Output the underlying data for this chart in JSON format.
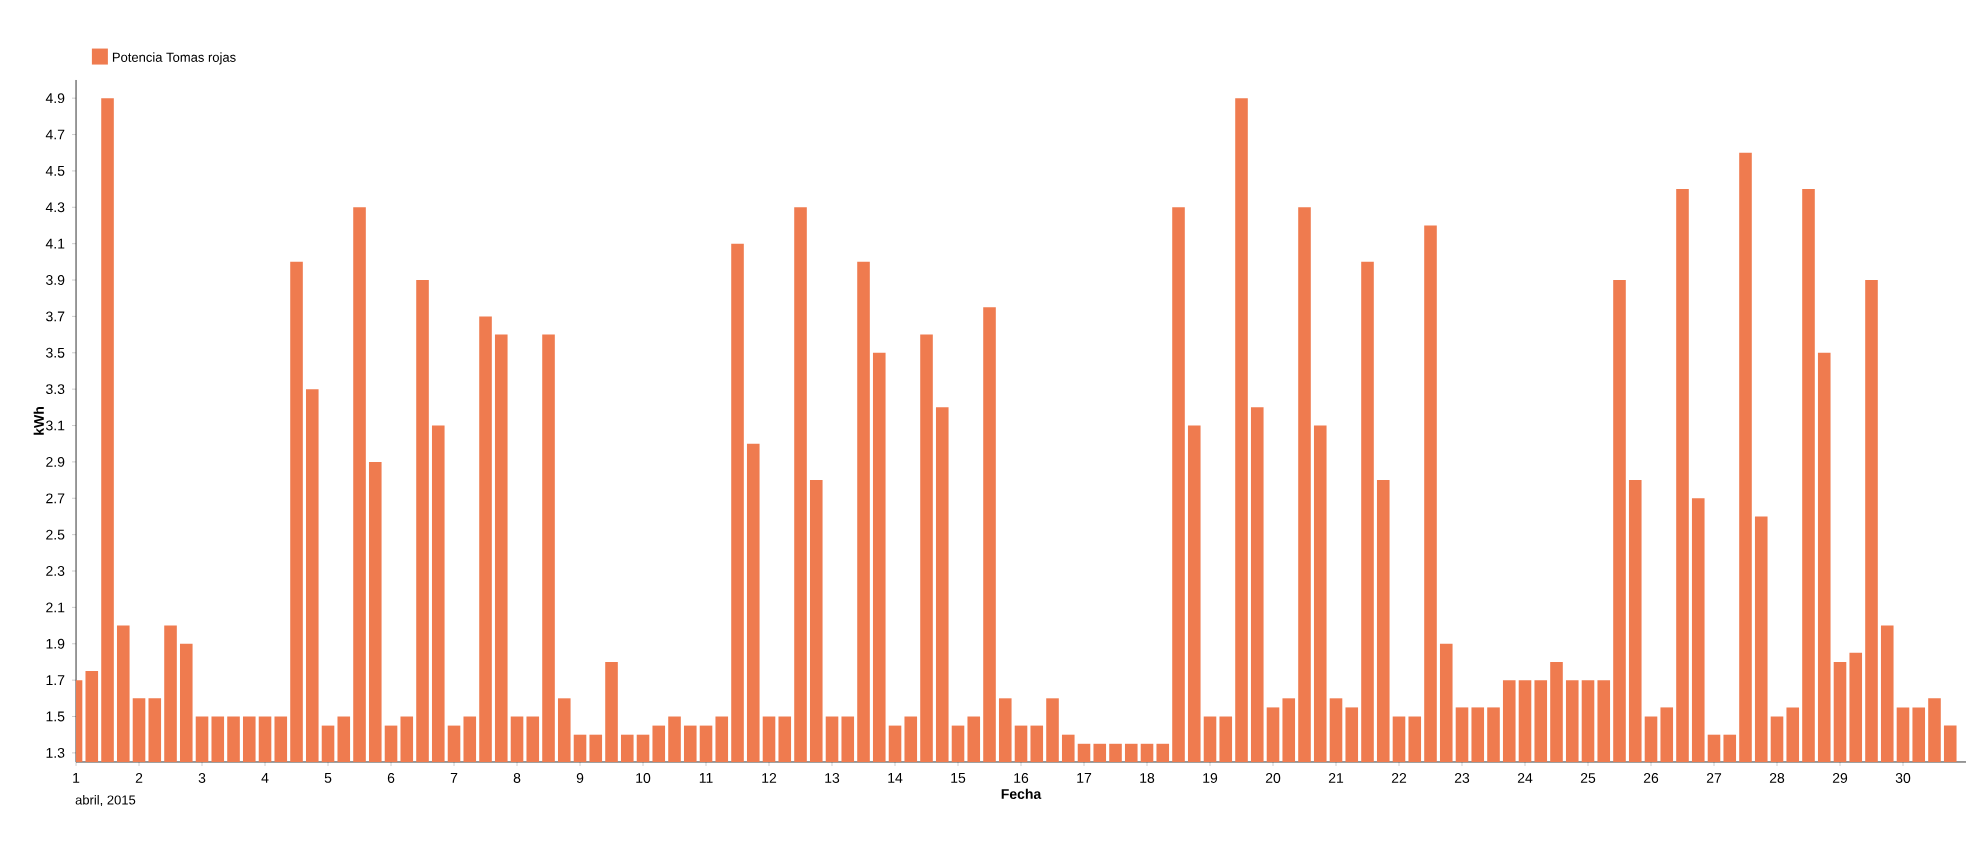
{
  "chart_data": {
    "type": "bar",
    "xlabel": "Fecha",
    "ylabel": "kWh",
    "annotations": [
      "abril, 2015"
    ],
    "legend": "top left",
    "xlim": [
      1,
      31
    ],
    "ylim": [
      1.25,
      5.0
    ],
    "xticks": [
      1,
      2,
      3,
      4,
      5,
      6,
      7,
      8,
      9,
      10,
      11,
      12,
      13,
      14,
      15,
      16,
      17,
      18,
      19,
      20,
      21,
      22,
      23,
      24,
      25,
      26,
      27,
      28,
      29,
      30
    ],
    "yticks": [
      1.3,
      1.5,
      1.7,
      1.9,
      2.1,
      2.3,
      2.5,
      2.7,
      2.9,
      3.1,
      3.3,
      3.5,
      3.7,
      3.9,
      4.1,
      4.3,
      4.5,
      4.7,
      4.9
    ],
    "series": [
      {
        "name": "Potencia Tomas rojas",
        "color": "#ef7b4f",
        "x": [
          1,
          1.25,
          1.5,
          1.75,
          2,
          2.25,
          2.5,
          2.75,
          3,
          3.25,
          3.5,
          3.75,
          4,
          4.25,
          4.5,
          4.75,
          5,
          5.25,
          5.5,
          5.75,
          6,
          6.25,
          6.5,
          6.75,
          7,
          7.25,
          7.5,
          7.75,
          8,
          8.25,
          8.5,
          8.75,
          9,
          9.25,
          9.5,
          9.75,
          10,
          10.25,
          10.5,
          10.75,
          11,
          11.25,
          11.5,
          11.75,
          12,
          12.25,
          12.5,
          12.75,
          13,
          13.25,
          13.5,
          13.75,
          14,
          14.25,
          14.5,
          14.75,
          15,
          15.25,
          15.5,
          15.75,
          16,
          16.25,
          16.5,
          16.75,
          17,
          17.25,
          17.5,
          17.75,
          18,
          18.25,
          18.5,
          18.75,
          19,
          19.25,
          19.5,
          19.75,
          20,
          20.25,
          20.5,
          20.75,
          21,
          21.25,
          21.5,
          21.75,
          22,
          22.25,
          22.5,
          22.75,
          23,
          23.25,
          23.5,
          23.75,
          24,
          24.25,
          24.5,
          24.75,
          25,
          25.25,
          25.5,
          25.75,
          26,
          26.25,
          26.5,
          26.75,
          27,
          27.25,
          27.5,
          27.75,
          28,
          28.25,
          28.5,
          28.75,
          29,
          29.25,
          29.5,
          29.75,
          30,
          30.25,
          30.5,
          30.75
        ],
        "values": [
          1.7,
          1.75,
          4.9,
          2.0,
          1.6,
          1.6,
          2.0,
          1.9,
          1.5,
          1.5,
          1.5,
          1.5,
          1.5,
          1.5,
          4.0,
          3.3,
          1.45,
          1.5,
          4.3,
          2.9,
          1.45,
          1.5,
          3.9,
          3.1,
          1.45,
          1.5,
          3.7,
          3.6,
          1.5,
          1.5,
          3.6,
          1.6,
          1.4,
          1.4,
          1.8,
          1.4,
          1.4,
          1.45,
          1.5,
          1.45,
          1.45,
          1.5,
          4.1,
          3.0,
          1.5,
          1.5,
          4.3,
          2.8,
          1.5,
          1.5,
          4.0,
          3.5,
          1.45,
          1.5,
          3.6,
          3.2,
          1.45,
          1.5,
          3.75,
          1.6,
          1.45,
          1.45,
          1.6,
          1.4,
          1.35,
          1.35,
          1.35,
          1.35,
          1.35,
          1.35,
          4.3,
          3.1,
          1.5,
          1.5,
          4.9,
          3.2,
          1.55,
          1.6,
          4.3,
          3.1,
          1.6,
          1.55,
          4.0,
          2.8,
          1.5,
          1.5,
          4.2,
          1.9,
          1.55,
          1.55,
          1.55,
          1.7,
          1.7,
          1.7,
          1.8,
          1.7,
          1.7,
          1.7,
          3.9,
          2.8,
          1.5,
          1.55,
          4.4,
          2.7,
          1.4,
          1.4,
          4.6,
          2.6,
          1.5,
          1.55,
          4.4,
          3.5,
          1.8,
          1.85,
          3.9,
          2.0,
          1.55,
          1.55,
          1.6,
          1.45
        ]
      }
    ]
  }
}
